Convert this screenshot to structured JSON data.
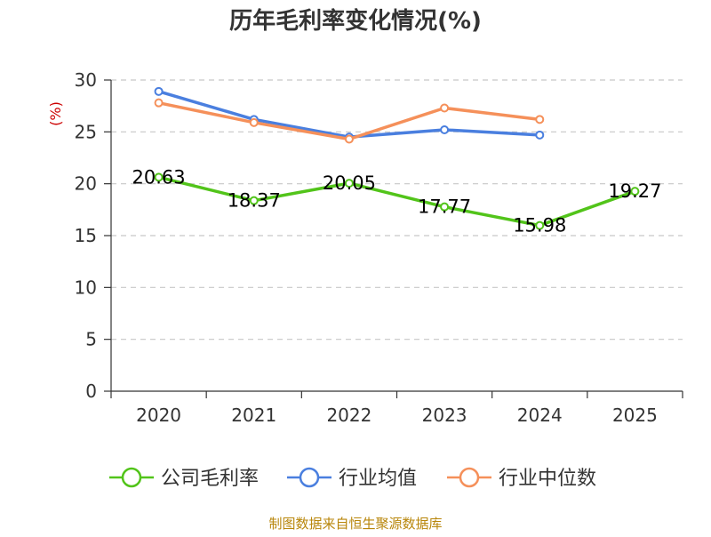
{
  "chart_data": {
    "type": "line",
    "title": "历年毛利率变化情况(%)",
    "ylabel": "(%)",
    "categories": [
      "2020",
      "2021",
      "2022",
      "2023",
      "2024",
      "2025"
    ],
    "ylim": [
      0,
      30
    ],
    "yticks": [
      0,
      5,
      10,
      15,
      20,
      25,
      30
    ],
    "grid": true,
    "legend_position": "bottom",
    "series": [
      {
        "name": "公司毛利率",
        "color": "#52c41a",
        "values": [
          20.63,
          18.37,
          20.05,
          17.77,
          15.98,
          19.27
        ],
        "labels": [
          "20.63",
          "18.37",
          "20.05",
          "17.77",
          "15.98",
          "19.27"
        ]
      },
      {
        "name": "行业均值",
        "color": "#4a7fdf",
        "values": [
          28.9,
          26.2,
          24.5,
          25.2,
          24.7,
          null
        ]
      },
      {
        "name": "行业中位数",
        "color": "#f5905a",
        "values": [
          27.8,
          25.9,
          24.3,
          27.3,
          26.2,
          null
        ]
      }
    ],
    "source": "制图数据来自恒生聚源数据库"
  }
}
